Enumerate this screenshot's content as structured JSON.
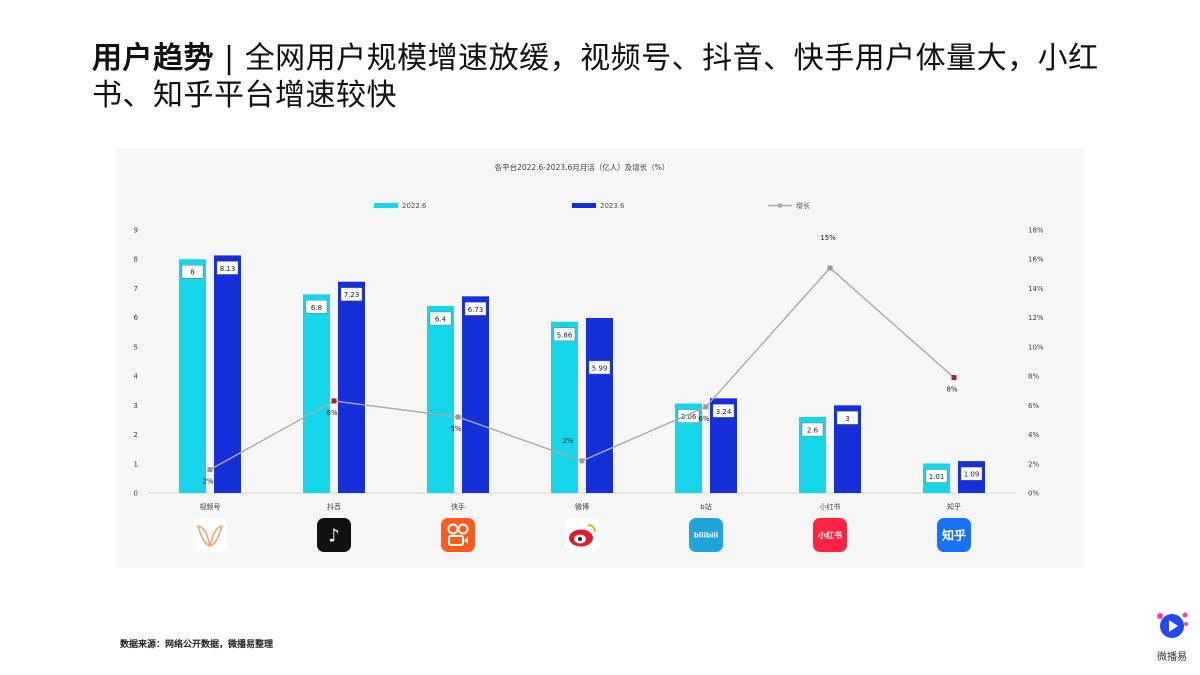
{
  "title": {
    "bold": "用户趋势",
    "separator": " | ",
    "rest": "全网用户规模增速放缓，视频号、抖音、快手用户体量大，小红书、知乎平台增速较快"
  },
  "chart_data": {
    "type": "bar",
    "title": "各平台2022.6-2023.6月月活（亿人）及增长（%）",
    "categories": [
      "视频号",
      "抖音",
      "快手",
      "微博",
      "b站",
      "小红书",
      "知乎"
    ],
    "series": [
      {
        "name": "2022.6",
        "type": "bar",
        "axis": "left",
        "color": "#14d6e8",
        "values": [
          8,
          6.8,
          6.4,
          5.86,
          3.06,
          2.6,
          1.01
        ],
        "labels": [
          "8",
          "6.8",
          "6.4",
          "5.86",
          "3.06",
          "2.6",
          "1.01"
        ]
      },
      {
        "name": "2023.6",
        "type": "bar",
        "axis": "left",
        "color": "#1530d8",
        "values": [
          8.13,
          7.23,
          6.73,
          5.99,
          3.24,
          3,
          1.09
        ],
        "labels": [
          "8.13",
          "7.23",
          "6.73",
          "5.99",
          "3.24",
          "3",
          "1.09"
        ]
      },
      {
        "name": "增长",
        "type": "line",
        "axis": "right",
        "color": "#aaaaaa",
        "values": [
          1.6,
          6.3,
          5.2,
          2.2,
          5.9,
          15.4,
          7.9
        ],
        "labels": [
          "2%",
          "6%",
          "5%",
          "2%",
          "6%",
          "15%",
          "8%"
        ]
      }
    ],
    "ylim_left": [
      0,
      9
    ],
    "yticks_left": [
      "0",
      "1",
      "2",
      "3",
      "4",
      "5",
      "6",
      "7",
      "8",
      "9"
    ],
    "ylim_right": [
      0,
      18
    ],
    "yticks_right": [
      "0%",
      "2%",
      "4%",
      "6%",
      "8%",
      "10%",
      "12%",
      "14%",
      "16%",
      "18%"
    ],
    "legend_position": "top",
    "grid": false
  },
  "platform_icons": [
    {
      "name": "wechat-channels-icon",
      "text": "",
      "bg": "#ffffff",
      "fg": "#f0a070"
    },
    {
      "name": "douyin-icon",
      "text": "♪",
      "bg": "#111111",
      "fg": "#ffffff"
    },
    {
      "name": "kuaishou-icon",
      "text": "",
      "bg": "#ff5a1f",
      "fg": "#ffffff"
    },
    {
      "name": "weibo-icon",
      "text": "",
      "bg": "#ffffff",
      "fg": "#e6162d"
    },
    {
      "name": "bilibili-icon",
      "text": "bilibili",
      "bg": "#1fa4dc",
      "fg": "#ffffff"
    },
    {
      "name": "xiaohongshu-icon",
      "text": "小红书",
      "bg": "#ff2442",
      "fg": "#ffffff"
    },
    {
      "name": "zhihu-icon",
      "text": "知乎",
      "bg": "#1772f6",
      "fg": "#ffffff"
    }
  ],
  "source": "数据来源：网络公开数据，微播易整理",
  "brand": {
    "name": "微播易"
  }
}
